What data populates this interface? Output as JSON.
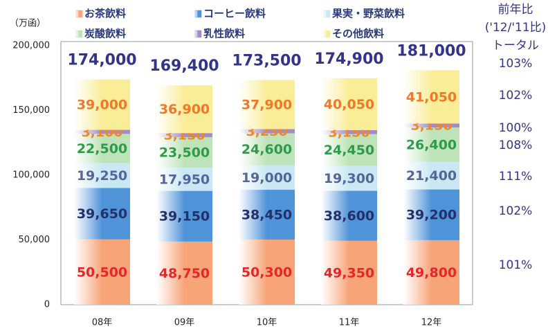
{
  "chart_data": {
    "type": "stacked_bar",
    "y_unit_label": "（万函）",
    "categories": [
      "08年",
      "09年",
      "10年",
      "11年",
      "12年"
    ],
    "ylim": [
      0,
      200000
    ],
    "yticks": [
      0,
      {
        "value": 50000,
        "label": "50,000"
      },
      {
        "value": 100000,
        "label": "100,000"
      },
      {
        "value": 150000,
        "label": "150,000"
      },
      {
        "value": 200000,
        "label": "200,000"
      }
    ],
    "series": [
      {
        "name": "お茶飲料",
        "color": "#f7a477",
        "label_color": "#e8262a",
        "values": [
          50500,
          48750,
          50300,
          49350,
          49800
        ],
        "value_labels": [
          "50,500",
          "48,750",
          "50,300",
          "49,350",
          "49,800"
        ],
        "yoy": {
          "value": 101,
          "label": "101%"
        }
      },
      {
        "name": "コーヒー飲料",
        "color": "#4f93d8",
        "label_color": "#23306a",
        "values": [
          39650,
          39150,
          38450,
          38600,
          39200
        ],
        "value_labels": [
          "39,650",
          "39,150",
          "38,450",
          "38,600",
          "39,200"
        ],
        "yoy": {
          "value": 102,
          "label": "102%"
        }
      },
      {
        "name": "果実・野菜飲料",
        "color": "#c9e8f3",
        "label_color": "#55659a",
        "values": [
          19250,
          17950,
          19000,
          19300,
          21400
        ],
        "value_labels": [
          "19,250",
          "17,950",
          "19,000",
          "19,300",
          "21,400"
        ],
        "yoy": {
          "value": 111,
          "label": "111%"
        }
      },
      {
        "name": "炭酸飲料",
        "color": "#bfe3b8",
        "label_color": "#2e9a4c",
        "values": [
          22500,
          23500,
          24600,
          24450,
          26400
        ],
        "value_labels": [
          "22,500",
          "23,500",
          "24,600",
          "24,450",
          "26,400"
        ],
        "yoy": {
          "value": 108,
          "label": "108%"
        }
      },
      {
        "name": "乳性飲料",
        "color": "#a48bc6",
        "label_color": "#f0882a",
        "values": [
          3100,
          3150,
          3250,
          3150,
          3150
        ],
        "value_labels": [
          "3,100",
          "3,150",
          "3,250",
          "3,150",
          "3,150"
        ],
        "yoy": {
          "value": 100,
          "label": "100%"
        }
      },
      {
        "name": "その他飲料",
        "color": "#f9ed98",
        "label_color": "#f0782a",
        "values": [
          39000,
          36900,
          37900,
          40050,
          41050
        ],
        "value_labels": [
          "39,000",
          "36,900",
          "37,900",
          "40,050",
          "41,050"
        ],
        "yoy": {
          "value": 102,
          "label": "102%"
        }
      }
    ],
    "totals": [
      174000,
      169400,
      173500,
      174900,
      181000
    ],
    "totals_labels": [
      "174,000",
      "169,400",
      "173,500",
      "174,900",
      "181,000"
    ],
    "yoy_title": "前年比",
    "yoy_subtitle": "('12/'11比)",
    "yoy_total_label": "トータル",
    "yoy_total": {
      "value": 103,
      "label": "103%"
    }
  }
}
